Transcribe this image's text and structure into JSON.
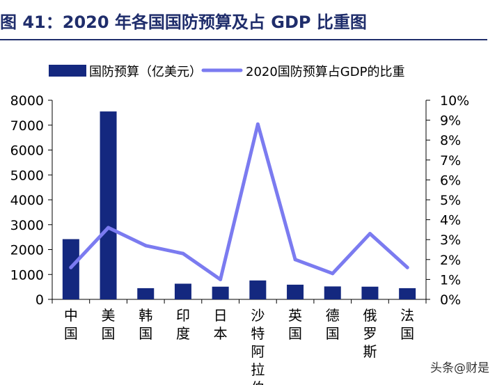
{
  "title": "图 41：2020 年各国国防预算及占 GDP 比重图",
  "watermark": "头条@财是",
  "chart_data": {
    "type": "bar",
    "categories": [
      "中国",
      "美国",
      "韩国",
      "印度",
      "日本",
      "沙特阿拉伯",
      "英国",
      "德国",
      "俄罗斯",
      "法国"
    ],
    "series": [
      {
        "name": "国防预算（亿美元）",
        "kind": "bar",
        "axis": "left",
        "color": "#14287f",
        "values": [
          2420,
          7550,
          450,
          630,
          510,
          760,
          590,
          520,
          510,
          450
        ]
      },
      {
        "name": "2020国防预算占GDP的比重",
        "kind": "line",
        "axis": "right",
        "color": "#7b7bf0",
        "values": [
          1.6,
          3.6,
          2.7,
          2.3,
          1.0,
          8.8,
          2.0,
          1.3,
          3.3,
          1.6
        ]
      }
    ],
    "ylim_left": [
      0,
      8000
    ],
    "yticks_left": [
      "0",
      "1000",
      "2000",
      "3000",
      "4000",
      "5000",
      "6000",
      "7000",
      "8000"
    ],
    "ylim_right": [
      0,
      10
    ],
    "yticks_right": [
      "0%",
      "1%",
      "2%",
      "3%",
      "4%",
      "5%",
      "6%",
      "7%",
      "8%",
      "9%",
      "10%"
    ],
    "legend_position": "top",
    "grid": false
  }
}
